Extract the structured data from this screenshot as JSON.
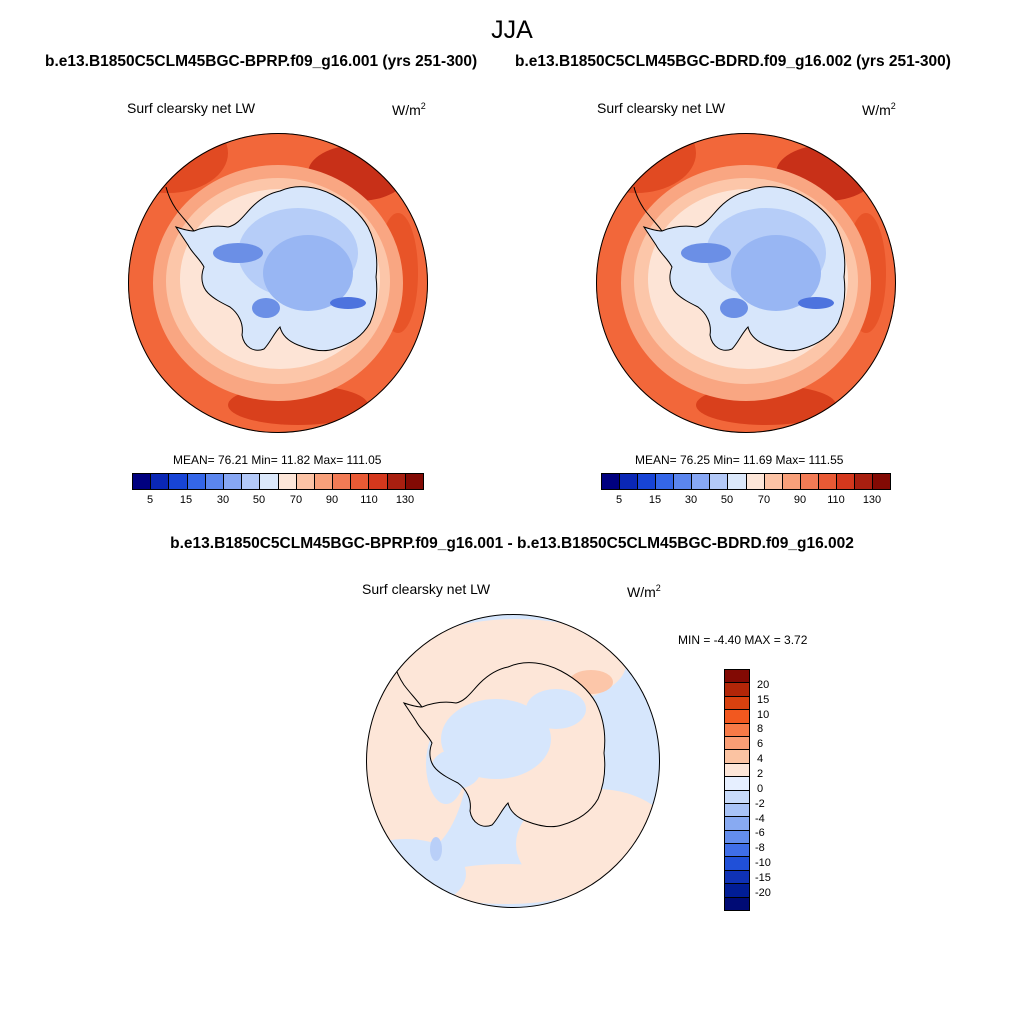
{
  "page": {
    "season": "JJA",
    "case_a": "b.e13.B1850C5CLM45BGC-BPRP.f09_g16.001 (yrs 251-300)",
    "case_b": "b.e13.B1850C5CLM45BGC-BDRD.f09_g16.002 (yrs 251-300)",
    "diff_title": "b.e13.B1850C5CLM45BGC-BPRP.f09_g16.001 - b.e13.B1850C5CLM45BGC-BDRD.f09_g16.002"
  },
  "panels": [
    {
      "variable": "Surf clearsky net LW",
      "unit": "W/m",
      "unit_exp": "2",
      "stats": "MEAN=  76.21  Min=  11.82  Max= 111.05",
      "mean": 76.21,
      "min": 11.82,
      "max": 111.05
    },
    {
      "variable": "Surf clearsky net LW",
      "unit": "W/m",
      "unit_exp": "2",
      "stats": "MEAN=  76.25  Min=  11.69  Max= 111.55",
      "mean": 76.25,
      "min": 11.69,
      "max": 111.55
    }
  ],
  "diff_panel": {
    "variable": "Surf clearsky net LW",
    "unit": "W/m",
    "unit_exp": "2",
    "stats": "MIN =  -4.40 MAX =   3.72",
    "min": -4.4,
    "max": 3.72
  },
  "colorbar_main": {
    "colors": [
      "#00007f",
      "#0a27b5",
      "#1744d6",
      "#3466e8",
      "#5b86ef",
      "#87a7f4",
      "#b3c9f8",
      "#dbe8fb",
      "#fde6d8",
      "#fcc3a5",
      "#f8a07a",
      "#f27b55",
      "#e95a35",
      "#d4381d",
      "#a81f10",
      "#820a04"
    ],
    "labels": [
      "5",
      "15",
      "30",
      "50",
      "70",
      "90",
      "110",
      "130"
    ]
  },
  "colorbar_diff": {
    "colors": [
      "#820a04",
      "#b22608",
      "#d8410f",
      "#f2581f",
      "#f77a47",
      "#fa9e75",
      "#fbc3a2",
      "#fde6d8",
      "#e6efff",
      "#c8dbfb",
      "#a8c3f7",
      "#88aaf2",
      "#638ded",
      "#3f6ee8",
      "#2050d8",
      "#0f32b5",
      "#011d96",
      "#000b75"
    ],
    "labels": [
      "20",
      "15",
      "10",
      "8",
      "6",
      "4",
      "2",
      "0",
      "-2",
      "-4",
      "-6",
      "-8",
      "-10",
      "-15",
      "-20"
    ]
  },
  "colors": {
    "ocean_warm": "#f2673a",
    "shelf_warm": "#f9a682",
    "pale_warm": "#fde4d6",
    "ice_light": "#d7e6fb",
    "ice_mid": "#98b6f3",
    "ice_dark": "#6b8fe6",
    "diff_pos": "#fde6d8",
    "diff_neg": "#d6e6fc"
  }
}
